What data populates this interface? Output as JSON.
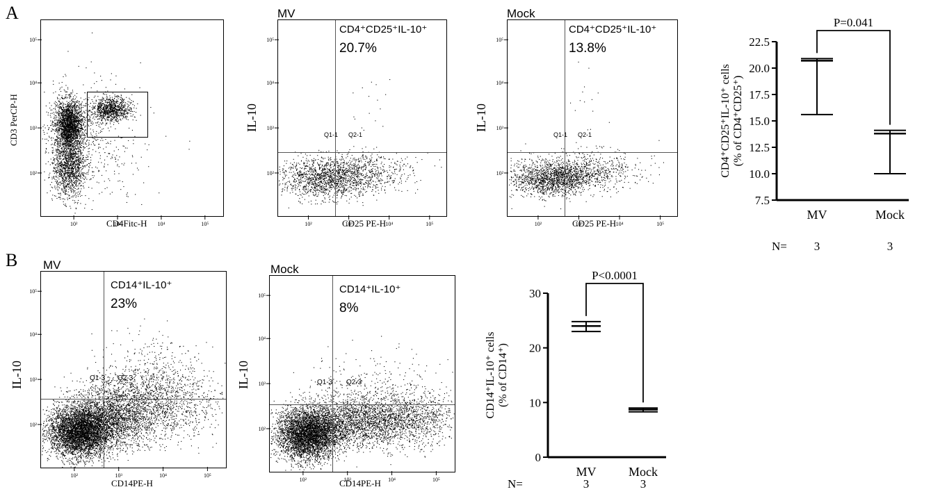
{
  "figure": {
    "panel_A": {
      "letter": "A",
      "gating_plot": {
        "y_label": "CD3 PerCP-H",
        "x_label": "CD4Fitc-H",
        "x_ticks": [
          "10²",
          "10³",
          "10⁴",
          "10⁵"
        ],
        "y_ticks": [
          "10²",
          "10³",
          "10⁴",
          "10⁵"
        ]
      },
      "facs_plots": [
        {
          "title": "MV",
          "gate_label": "CD4⁺CD25⁺IL-10⁺",
          "percent": "20.7%",
          "y_label": "IL-10",
          "x_label": "CD25 PE-H",
          "quadrants": [
            "Q1-1",
            "Q2-1"
          ]
        },
        {
          "title": "Mock",
          "gate_label": "CD4⁺CD25⁺IL-10⁺",
          "percent": "13.8%",
          "y_label": "IL-10",
          "x_label": "CD25 PE-H",
          "quadrants": [
            "Q1-1",
            "Q2-1"
          ]
        }
      ]
    },
    "panel_B": {
      "letter": "B",
      "facs_plots": [
        {
          "title": "MV",
          "gate_label": "CD14⁺IL-10⁺",
          "percent": "23%",
          "y_label": "IL-10",
          "x_label": "CD14PE-H",
          "quadrants": [
            "Q1-3",
            "Q2-3"
          ]
        },
        {
          "title": "Mock",
          "gate_label": "CD14⁺IL-10⁺",
          "percent": "8%",
          "y_label": "IL-10",
          "x_label": "CD14PE-H",
          "quadrants": [
            "Q1-3",
            "Q2-3"
          ]
        }
      ]
    }
  },
  "chart_data": [
    {
      "type": "box",
      "panel": "A",
      "categories": [
        "MV",
        "Mock"
      ],
      "series": [
        {
          "name": "MV",
          "min": 15.6,
          "median": 20.7,
          "max": 20.9
        },
        {
          "name": "Mock",
          "min": 10.0,
          "median": 13.8,
          "max": 14.1
        }
      ],
      "ylabel": "CD4⁺CD25⁺IL-10⁺ cells (% of CD4⁺CD25⁺)",
      "ylabel_line1": "CD4⁺CD25⁺IL-10⁺ cells",
      "ylabel_line2": "(% of CD4⁺CD25⁺)",
      "ylim": [
        7.5,
        22.5
      ],
      "yticks": [
        "7.5",
        "10.0",
        "12.5",
        "15.0",
        "17.5",
        "20.0",
        "22.5"
      ],
      "significance": "P=0.041",
      "n_label": "N=",
      "n_values": [
        "3",
        "3"
      ]
    },
    {
      "type": "box",
      "panel": "B",
      "categories": [
        "MV",
        "Mock"
      ],
      "series": [
        {
          "name": "MV",
          "min": 23.0,
          "median": 24.0,
          "max": 24.8
        },
        {
          "name": "Mock",
          "min": 8.3,
          "median": 8.7,
          "max": 9.0
        }
      ],
      "ylabel": "CD14⁺IL-10⁺ cells (% of CD14⁺)",
      "ylabel_line1": "CD14⁺IL-10⁺ cells",
      "ylabel_line2": "(% of CD14⁺)",
      "ylim": [
        0,
        30
      ],
      "yticks": [
        "0",
        "10",
        "20",
        "30"
      ],
      "significance": "P<0.0001",
      "n_label": "N=",
      "n_values": [
        "3",
        "3"
      ]
    }
  ]
}
